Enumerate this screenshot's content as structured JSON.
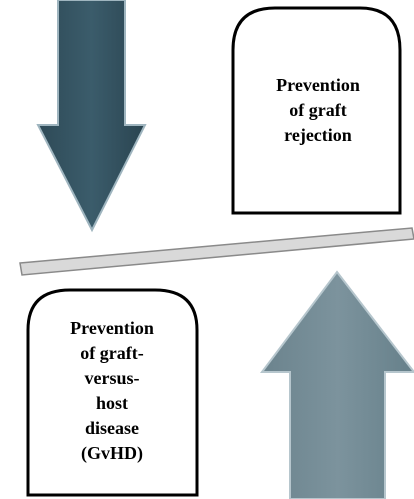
{
  "top_box": {
    "lines": [
      "Prevention",
      "of graft",
      "rejection"
    ]
  },
  "bottom_box": {
    "lines": [
      "Prevention",
      "of graft-",
      "versus-",
      "host",
      "disease",
      "(GvHD)"
    ]
  }
}
